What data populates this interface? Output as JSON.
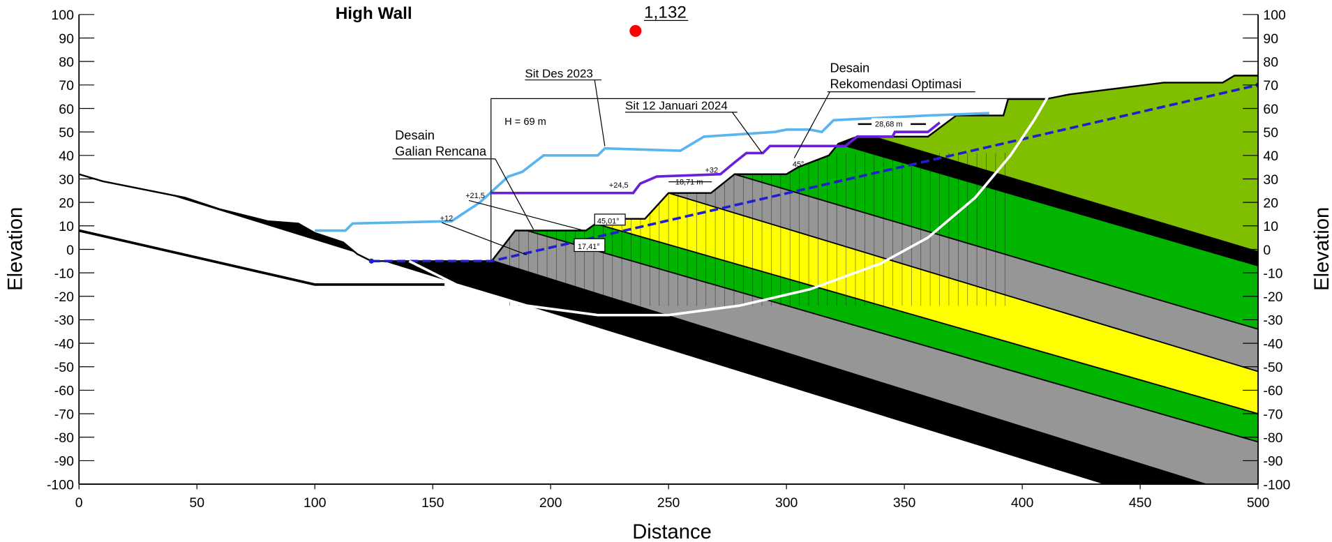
{
  "chart_data": {
    "type": "section",
    "title": "High Wall",
    "x_label": "Distance",
    "y_label": "Elevation",
    "y2_label": "Elevation",
    "xlim": [
      0,
      500
    ],
    "ylim": [
      -100,
      100
    ],
    "y2lim": [
      -100,
      100
    ],
    "xticks": [
      0,
      50,
      100,
      150,
      200,
      250,
      300,
      350,
      400,
      450,
      500
    ],
    "yticks": [
      -100,
      -90,
      -80,
      -70,
      -60,
      -50,
      -40,
      -30,
      -20,
      -10,
      0,
      10,
      20,
      30,
      40,
      50,
      60,
      70,
      80,
      90,
      100
    ],
    "y2ticks": [
      -100,
      -90,
      -80,
      -70,
      -60,
      -50,
      -40,
      -30,
      -20,
      -10,
      0,
      10,
      20,
      30,
      40,
      50,
      60,
      70,
      80,
      90,
      100
    ],
    "surface": {
      "color": "#000000",
      "x": [
        0,
        10,
        45,
        60,
        80,
        93,
        100,
        112,
        118,
        124,
        175,
        185,
        197,
        215,
        222,
        240,
        250,
        268,
        278,
        300,
        305,
        318,
        322,
        330,
        360,
        372,
        392,
        394,
        410,
        420,
        460,
        485,
        490,
        500
      ],
      "y": [
        32,
        29,
        22,
        17,
        12,
        11,
        7,
        3,
        -2,
        -5,
        -5,
        8,
        8,
        8,
        13,
        13,
        24,
        24,
        32,
        32,
        35,
        40,
        45,
        48,
        48,
        57,
        57,
        64,
        64,
        66,
        71,
        71,
        74,
        74
      ]
    },
    "layers": [
      {
        "color": "#808000",
        "x": [
          0,
          500
        ],
        "y": [
          100,
          100
        ]
      },
      {
        "color": "#000000",
        "x": [
          0,
          500
        ],
        "y": [
          35.4,
          -120.1
        ]
      },
      {
        "color": "#969696",
        "x": [
          0,
          500
        ],
        "y": [
          50.3,
          -107
        ]
      },
      {
        "color": "#00b400",
        "x": [
          0,
          500
        ],
        "y": [
          63.1,
          -82
        ]
      },
      {
        "color": "#ffff00",
        "x": [
          0,
          500
        ],
        "y": [
          74,
          -70
        ]
      },
      {
        "color": "#969696",
        "x": [
          0,
          500
        ],
        "y": [
          100,
          -52
        ]
      },
      {
        "color": "#00b400",
        "x": [
          0,
          500
        ],
        "y": [
          114.6,
          -34
        ]
      },
      {
        "color": "#000000",
        "x": [
          0,
          500
        ],
        "y": [
          139,
          -7
        ]
      },
      {
        "color": "#7fbf00",
        "x": [
          0,
          500
        ],
        "y": [
          149,
          -1
        ]
      }
    ],
    "series": [
      {
        "color": "#000000",
        "x": [
          0,
          100,
          155
        ],
        "y": [
          8,
          -15,
          -15
        ]
      },
      {
        "name": "Sit Des 2023",
        "color": "#5ab4f0",
        "x": [
          100,
          113,
          116,
          158,
          170,
          182,
          188,
          197,
          220,
          223,
          255,
          265,
          295,
          300,
          310,
          315,
          320,
          340,
          360,
          386
        ],
        "y": [
          8,
          8,
          11,
          12,
          20,
          31,
          33,
          40,
          40,
          43,
          42,
          48,
          50,
          51,
          51,
          50,
          55,
          56,
          57,
          58
        ]
      },
      {
        "name": "Sit 12 Januari 2024",
        "color": "#6a1fd8",
        "x": [
          175,
          195,
          235,
          238,
          245,
          272,
          278,
          283,
          290,
          293,
          325,
          330,
          345,
          346,
          360,
          365
        ],
        "y": [
          24,
          24,
          24,
          28,
          31,
          32,
          37,
          41,
          41,
          44,
          44,
          48,
          48,
          50,
          50,
          54
        ]
      },
      {
        "color": "#1f1fcf",
        "dash": true,
        "x": [
          124,
          175,
          500
        ],
        "y": [
          -5,
          -5,
          70
        ]
      },
      {
        "color": "#ffffff",
        "x": [
          140,
          160,
          190,
          220,
          250,
          280,
          310,
          340,
          360,
          380,
          395,
          405,
          412
        ],
        "y": [
          -5,
          -15,
          -24,
          -28,
          -28,
          -24,
          -17,
          -6,
          5,
          22,
          40,
          55,
          67
        ]
      }
    ],
    "point": {
      "x": 236,
      "y": 93,
      "label": "1,132",
      "color": "#ff0000"
    },
    "design_labels": [
      [
        "Desain",
        "Galian Rencana"
      ],
      [
        "Desain",
        "Rekomendasi Optimasi"
      ]
    ],
    "annotations": [
      "H = 69 m",
      "+12",
      "+21,5",
      "+24,5",
      "+32",
      "18,71 m",
      "28,68 m",
      "45°",
      "45,01°",
      "17,41°"
    ]
  }
}
